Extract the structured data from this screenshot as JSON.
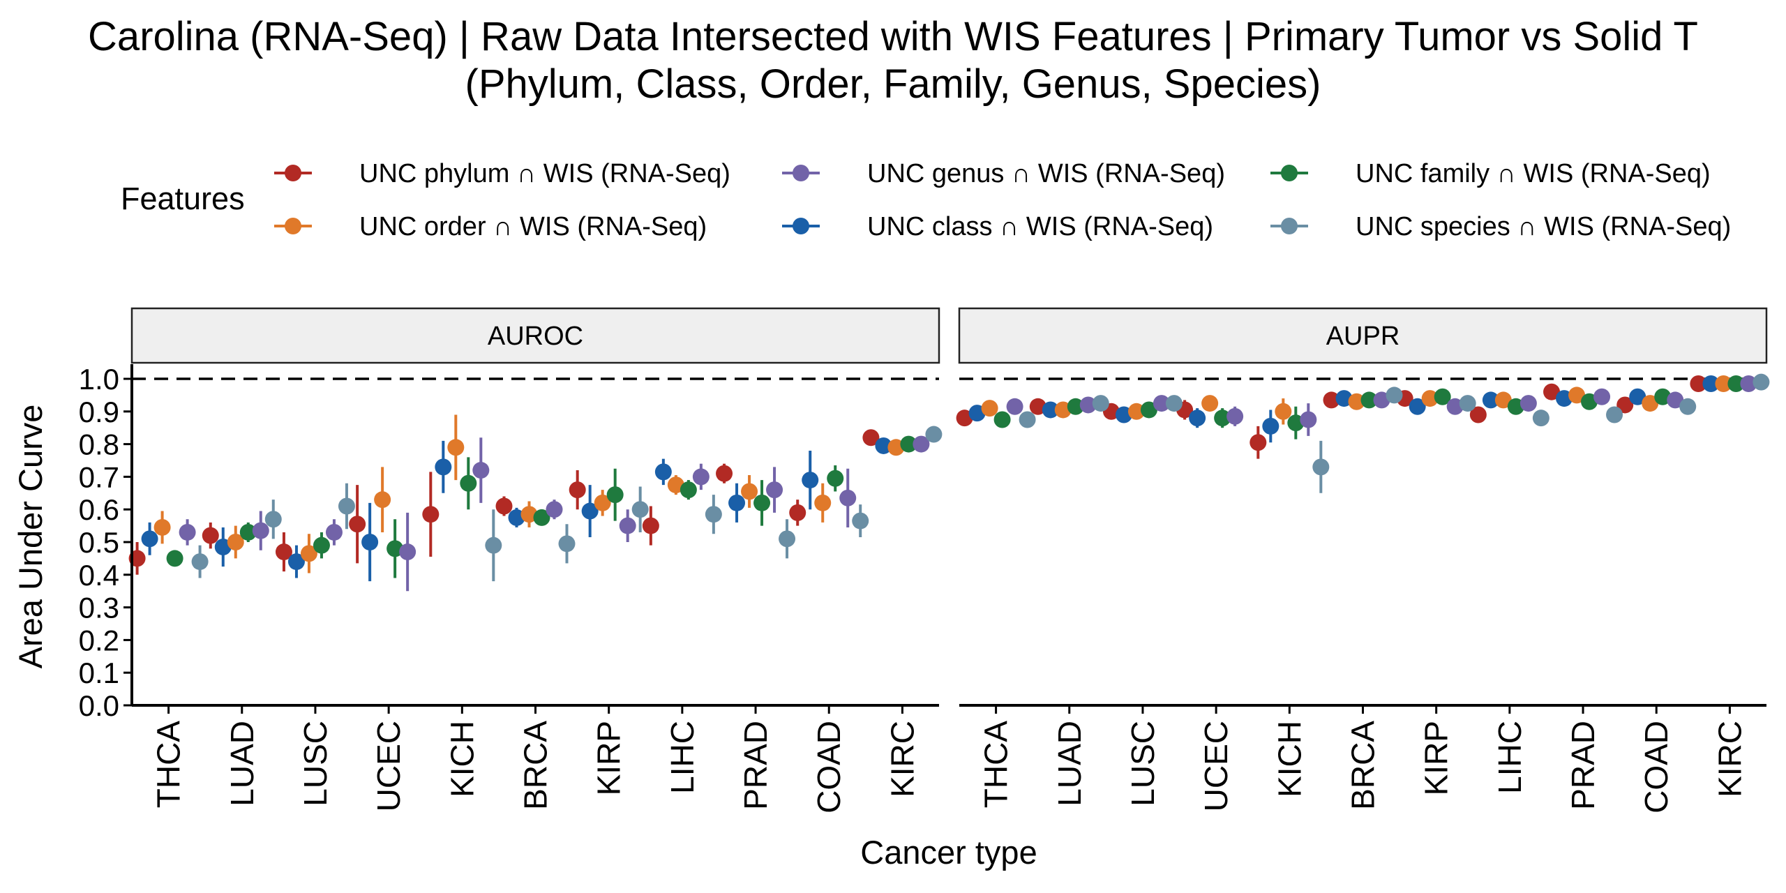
{
  "chart_data": {
    "type": "scatter",
    "title": "Carolina (RNA-Seq) | Raw Data Intersected with WIS Features  | Primary Tumor vs Solid T",
    "subtitle": "(Phylum, Class, Order, Family, Genus, Species)",
    "xlabel": "Cancer type",
    "ylabel": "Area Under Curve",
    "ylim": [
      0,
      1.0
    ],
    "yticks": [
      "0.0",
      "0.1",
      "0.2",
      "0.3",
      "0.4",
      "0.5",
      "0.6",
      "0.7",
      "0.8",
      "0.9",
      "1.0"
    ],
    "reference_line": 1.0,
    "grid": false,
    "legend_position": "top",
    "legend_title": "Features",
    "categories": [
      "THCA",
      "LUAD",
      "LUSC",
      "UCEC",
      "KICH",
      "BRCA",
      "KIRP",
      "LIHC",
      "PRAD",
      "COAD",
      "KIRC"
    ],
    "series": [
      {
        "name": "UNC phylum ∩ WIS (RNA-Seq)",
        "color": "#B22A24"
      },
      {
        "name": "UNC order ∩ WIS (RNA-Seq)",
        "color": "#E0792A"
      },
      {
        "name": "UNC genus ∩ WIS (RNA-Seq)",
        "color": "#7263A8"
      },
      {
        "name": "UNC class ∩ WIS (RNA-Seq)",
        "color": "#1A5FA8"
      },
      {
        "name": "UNC family ∩ WIS (RNA-Seq)",
        "color": "#1F7A3E"
      },
      {
        "name": "UNC species ∩ WIS (RNA-Seq)",
        "color": "#6A8EA4"
      }
    ],
    "plot_order": [
      0,
      3,
      1,
      4,
      2,
      5
    ],
    "facets": [
      {
        "label": "AUROC",
        "values": [
          [
            0.45,
            0.52,
            0.47,
            0.555,
            0.585,
            0.61,
            0.66,
            0.55,
            0.71,
            0.59,
            0.82
          ],
          [
            0.545,
            0.5,
            0.465,
            0.63,
            0.79,
            0.585,
            0.62,
            0.675,
            0.655,
            0.62,
            0.79
          ],
          [
            0.53,
            0.535,
            0.53,
            0.47,
            0.72,
            0.6,
            0.55,
            0.7,
            0.66,
            0.635,
            0.8
          ],
          [
            0.51,
            0.485,
            0.44,
            0.5,
            0.73,
            0.575,
            0.595,
            0.715,
            0.62,
            0.69,
            0.795
          ],
          [
            0.45,
            0.53,
            0.49,
            0.48,
            0.68,
            0.575,
            0.645,
            0.66,
            0.62,
            0.695,
            0.8
          ],
          [
            0.44,
            0.57,
            0.61,
            null,
            0.49,
            0.495,
            0.6,
            0.585,
            0.51,
            0.565,
            0.83
          ]
        ],
        "errors": [
          [
            0.05,
            0.04,
            0.06,
            0.12,
            0.13,
            0.03,
            0.06,
            0.06,
            0.03,
            0.04,
            0.0
          ],
          [
            0.05,
            0.05,
            0.06,
            0.1,
            0.1,
            0.04,
            0.04,
            0.03,
            0.05,
            0.06,
            0.0
          ],
          [
            0.04,
            0.06,
            0.04,
            0.12,
            0.1,
            0.03,
            0.05,
            0.04,
            0.07,
            0.09,
            0.0
          ],
          [
            0.05,
            0.06,
            0.05,
            0.12,
            0.08,
            0.03,
            0.08,
            0.04,
            0.06,
            0.09,
            0.0
          ],
          [
            0.02,
            0.03,
            0.04,
            0.09,
            0.08,
            0.02,
            0.08,
            0.03,
            0.07,
            0.04,
            0.0
          ],
          [
            0.05,
            0.06,
            0.07,
            null,
            0.11,
            0.06,
            0.07,
            0.06,
            0.06,
            0.05,
            0.0
          ]
        ]
      },
      {
        "label": "AUPR",
        "values": [
          [
            0.88,
            0.915,
            0.9,
            0.905,
            0.805,
            0.935,
            0.94,
            0.89,
            0.96,
            0.92,
            0.985
          ],
          [
            0.91,
            0.905,
            0.9,
            0.925,
            0.9,
            0.93,
            0.94,
            0.935,
            0.95,
            0.925,
            0.985
          ],
          [
            0.915,
            0.92,
            0.925,
            0.885,
            0.875,
            0.935,
            0.915,
            0.925,
            0.945,
            0.935,
            0.985
          ],
          [
            0.895,
            0.905,
            0.89,
            0.88,
            0.855,
            0.94,
            0.915,
            0.935,
            0.94,
            0.945,
            0.985
          ],
          [
            0.875,
            0.915,
            0.905,
            0.88,
            0.865,
            0.935,
            0.945,
            0.915,
            0.93,
            0.945,
            0.985
          ],
          [
            0.875,
            0.925,
            0.925,
            null,
            0.73,
            0.95,
            0.925,
            0.88,
            0.89,
            0.915,
            0.99
          ]
        ],
        "errors": [
          [
            0.02,
            0.02,
            0.02,
            0.03,
            0.05,
            0.01,
            0.02,
            0.02,
            0.01,
            0.02,
            0.0
          ],
          [
            0.02,
            0.02,
            0.02,
            0.02,
            0.04,
            0.01,
            0.02,
            0.02,
            0.01,
            0.02,
            0.0
          ],
          [
            0.02,
            0.02,
            0.02,
            0.03,
            0.05,
            0.01,
            0.02,
            0.02,
            0.01,
            0.02,
            0.0
          ],
          [
            0.02,
            0.02,
            0.02,
            0.03,
            0.05,
            0.01,
            0.02,
            0.02,
            0.01,
            0.02,
            0.0
          ],
          [
            0.02,
            0.02,
            0.02,
            0.03,
            0.05,
            0.01,
            0.02,
            0.02,
            0.01,
            0.02,
            0.0
          ],
          [
            0.02,
            0.02,
            0.02,
            null,
            0.08,
            0.01,
            0.02,
            0.02,
            0.01,
            0.02,
            0.0
          ]
        ]
      }
    ]
  }
}
